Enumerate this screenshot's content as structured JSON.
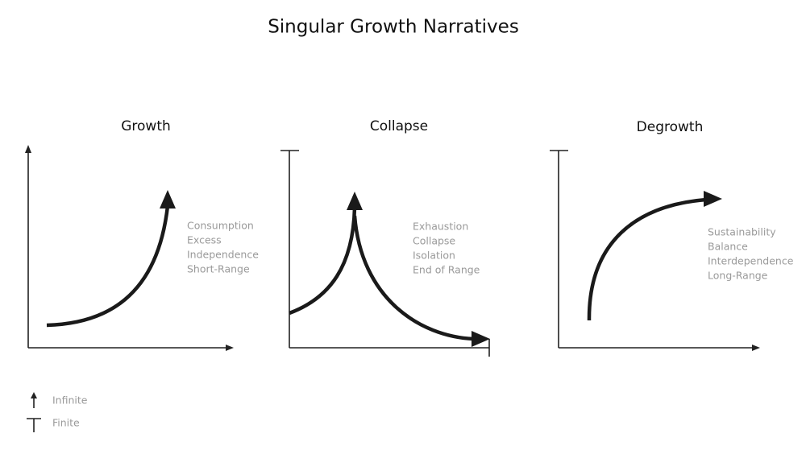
{
  "title": "Singular Growth Narratives",
  "panels": [
    {
      "title": "Growth",
      "keywords": [
        "Consumption",
        "Excess",
        "Independence",
        "Short-Range"
      ]
    },
    {
      "title": "Collapse",
      "keywords": [
        "Exhaustion",
        "Collapse",
        "Isolation",
        "End of Range"
      ]
    },
    {
      "title": "Degrowth",
      "keywords": [
        "Sustainability",
        "Balance",
        "Interdependence",
        "Long-Range"
      ]
    }
  ],
  "legend": [
    {
      "label": "Infinite"
    },
    {
      "label": "Finite"
    }
  ]
}
